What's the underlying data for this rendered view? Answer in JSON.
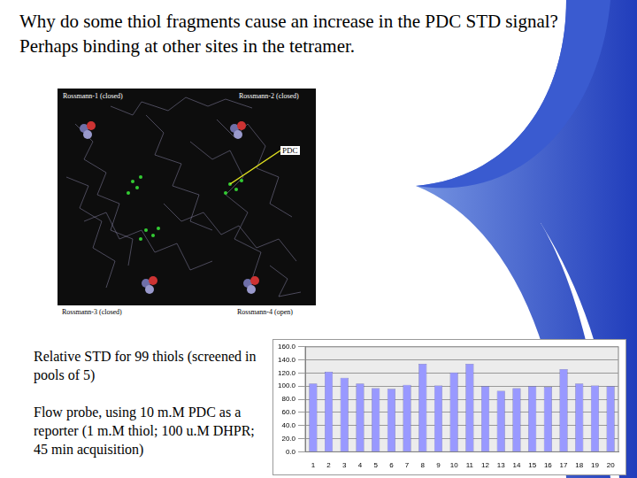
{
  "title": "Why do some thiol fragments cause an increase in the PDC STD signal? Perhaps binding at other sites in the tetramer.",
  "figure": {
    "top_left": "Rossmann-1 (closed)",
    "top_right": "Rossmann-2 (closed)",
    "pointer": "PDC",
    "bottom_left": "Rossmann-3 (closed)",
    "bottom_right": "Rossmann-4 (open)"
  },
  "captions": [
    "Relative STD for 99 thiols (screened in pools of 5)",
    "Flow probe, using 10 m.M PDC as a reporter (1 m.M thiol; 100 u.M DHPR; 45 min acquisition)"
  ],
  "chart_data": {
    "type": "bar",
    "categories": [
      "1",
      "2",
      "3",
      "4",
      "5",
      "6",
      "7",
      "8",
      "9",
      "10",
      "11",
      "12",
      "13",
      "14",
      "15",
      "16",
      "17",
      "18",
      "19",
      "20"
    ],
    "values": [
      104,
      122,
      113,
      104,
      97,
      96,
      102,
      134,
      101,
      121,
      134,
      100,
      93,
      97,
      100,
      99,
      126,
      104,
      101,
      100
    ],
    "color": "#9999ff",
    "ylim": [
      0,
      160
    ],
    "yticks": [
      {
        "value": 0,
        "label": "0.0"
      },
      {
        "value": 20,
        "label": "20.0"
      },
      {
        "value": 40,
        "label": "40.0"
      },
      {
        "value": 60,
        "label": "60.0"
      },
      {
        "value": 80,
        "label": "80.0"
      },
      {
        "value": 100,
        "label": "100.0"
      },
      {
        "value": 120,
        "label": "120.0"
      },
      {
        "value": 140,
        "label": "140.0"
      },
      {
        "value": 160,
        "label": "160.0"
      }
    ],
    "grid": true
  }
}
